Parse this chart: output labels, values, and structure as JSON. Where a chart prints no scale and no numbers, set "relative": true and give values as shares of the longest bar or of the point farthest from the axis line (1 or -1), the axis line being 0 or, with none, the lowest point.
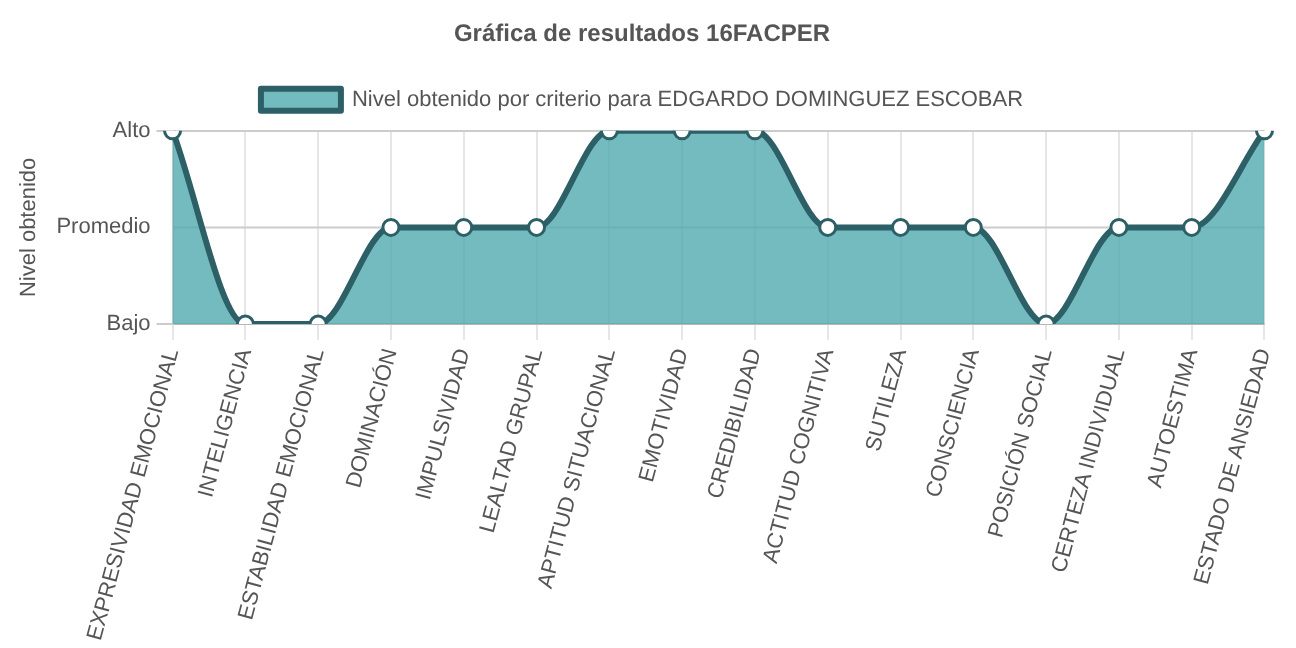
{
  "chart_data": {
    "type": "area",
    "title": "Gráfica de resultados 16FACPER",
    "ylabel": "Nivel obtenido",
    "categories": [
      "EXPRESIVIDAD EMOCIONAL",
      "INTELIGENCIA",
      "ESTABILIDAD EMOCIONAL",
      "DOMINACIÓN",
      "IMPULSIVIDAD",
      "LEALTAD GRUPAL",
      "APTITUD SITUACIONAL",
      "EMOTIVIDAD",
      "CREDIBILIDAD",
      "ACTITUD COGNITIVA",
      "SUTILEZA",
      "CONSCIENCIA",
      "POSICIÓN SOCIAL",
      "CERTEZA INDIVIDUAL",
      "AUTOESTIMA",
      "ESTADO DE ANSIEDAD"
    ],
    "series": [
      {
        "name": "Nivel obtenido por criterio para EDGARDO DOMINGUEZ ESCOBAR",
        "color": "#2c5f66",
        "values": [
          1,
          0,
          0,
          0.5,
          0.5,
          0.5,
          1,
          1,
          1,
          0.5,
          0.5,
          0.5,
          0,
          0.5,
          0.5,
          1
        ]
      }
    ],
    "relative": true,
    "y_categories": [
      "Alto",
      "Promedio",
      "Bajo"
    ],
    "ref_lines": [
      {
        "axis": "y",
        "value": 0.5,
        "color": "#cccccc"
      }
    ],
    "grid": true,
    "legend": "top",
    "marker": "circle",
    "line_style": "solid"
  }
}
